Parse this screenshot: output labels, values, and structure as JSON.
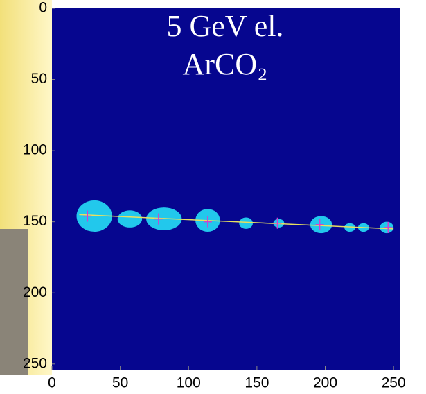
{
  "chart_data": {
    "type": "image",
    "title_lines": [
      "5 GeV el.",
      "ArCO₂"
    ],
    "xlim": [
      0,
      255
    ],
    "ylim": [
      0,
      254
    ],
    "y_reversed": true,
    "xticks": [
      0,
      50,
      100,
      150,
      200,
      250
    ],
    "yticks": [
      0,
      50,
      100,
      150,
      200,
      250
    ],
    "background_color": "#06068f",
    "clusters": {
      "color": "#22c8ec",
      "x": [
        31,
        57,
        82,
        114,
        142,
        166,
        197,
        218,
        228,
        245
      ],
      "y": [
        146,
        148,
        148,
        149,
        151,
        151,
        152,
        154,
        154,
        154
      ],
      "rx": [
        13,
        9,
        13,
        9,
        5,
        4,
        8,
        4,
        4,
        5
      ],
      "ry": [
        11,
        6,
        8,
        8,
        4,
        3,
        6,
        3,
        3,
        4
      ]
    },
    "fit_line": {
      "color": "#e8e060",
      "x": [
        20,
        250
      ],
      "y": [
        145,
        155
      ]
    },
    "hits": {
      "color": "#d040d0",
      "x": [
        26,
        78,
        114,
        165,
        196,
        246
      ],
      "y": [
        146,
        148,
        150,
        151,
        152,
        154
      ]
    }
  }
}
